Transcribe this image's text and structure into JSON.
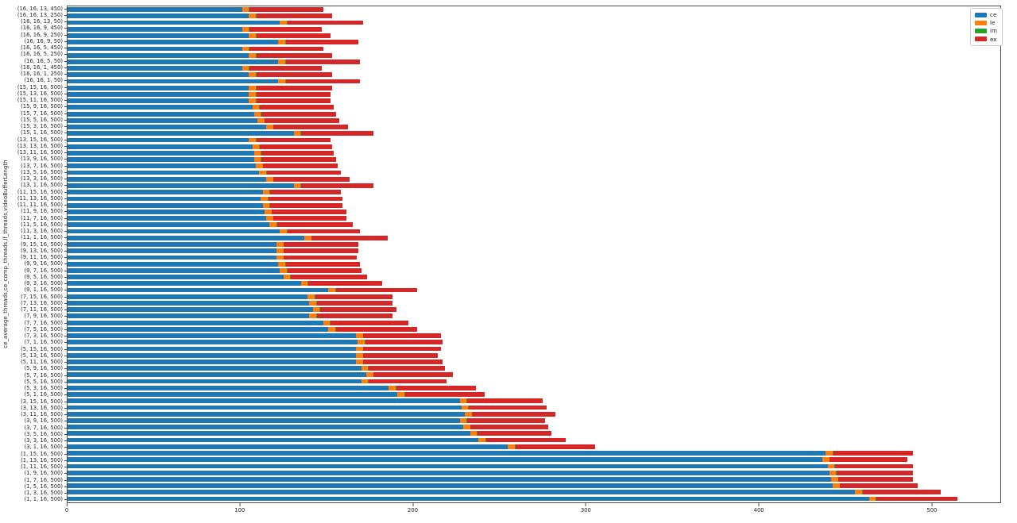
{
  "chart_data": {
    "type": "bar",
    "orientation": "horizontal",
    "stacked": true,
    "title": "",
    "xlabel": "",
    "ylabel": "ce_average_threads,ce_comp_threads,lf_threads,videoBufferLength",
    "xlim": [
      0,
      540
    ],
    "x_ticks": [
      0,
      100,
      200,
      300,
      400,
      500
    ],
    "grid": false,
    "legend_position": "upper right",
    "categories": [
      "(16, 16, 13, 450)",
      "(16, 16, 13, 250)",
      "(16, 16, 13, 50)",
      "(16, 16, 9, 450)",
      "(16, 16, 9, 250)",
      "(16, 16, 9, 50)",
      "(16, 16, 5, 450)",
      "(16, 16, 5, 250)",
      "(16, 16, 5, 50)",
      "(16, 16, 1, 450)",
      "(16, 16, 1, 250)",
      "(16, 16, 1, 50)",
      "(15, 15, 16, 500)",
      "(15, 13, 16, 500)",
      "(15, 11, 16, 500)",
      "(15, 9, 16, 500)",
      "(15, 7, 16, 500)",
      "(15, 5, 16, 500)",
      "(15, 3, 16, 500)",
      "(15, 1, 16, 500)",
      "(13, 15, 16, 500)",
      "(13, 13, 16, 500)",
      "(13, 11, 16, 500)",
      "(13, 9, 16, 500)",
      "(13, 7, 16, 500)",
      "(13, 5, 16, 500)",
      "(13, 3, 16, 500)",
      "(13, 1, 16, 500)",
      "(11, 15, 16, 500)",
      "(11, 13, 16, 500)",
      "(11, 11, 16, 500)",
      "(11, 9, 16, 500)",
      "(11, 7, 16, 500)",
      "(11, 5, 16, 500)",
      "(11, 3, 16, 500)",
      "(11, 1, 16, 500)",
      "(9, 15, 16, 500)",
      "(9, 13, 16, 500)",
      "(9, 11, 16, 500)",
      "(9, 9, 16, 500)",
      "(9, 7, 16, 500)",
      "(9, 5, 16, 500)",
      "(9, 3, 16, 500)",
      "(9, 1, 16, 500)",
      "(7, 15, 16, 500)",
      "(7, 13, 16, 500)",
      "(7, 11, 16, 500)",
      "(7, 9, 16, 500)",
      "(7, 7, 16, 500)",
      "(7, 5, 16, 500)",
      "(7, 3, 16, 500)",
      "(7, 1, 16, 500)",
      "(5, 15, 16, 500)",
      "(5, 13, 16, 500)",
      "(5, 11, 16, 500)",
      "(5, 9, 16, 500)",
      "(5, 7, 16, 500)",
      "(5, 5, 16, 500)",
      "(5, 3, 16, 500)",
      "(5, 1, 16, 500)",
      "(3, 15, 16, 500)",
      "(3, 13, 16, 500)",
      "(3, 11, 16, 500)",
      "(3, 9, 16, 500)",
      "(3, 7, 16, 500)",
      "(3, 5, 16, 500)",
      "(3, 3, 16, 500)",
      "(3, 1, 16, 500)",
      "(1, 15, 16, 500)",
      "(1, 13, 16, 500)",
      "(1, 11, 16, 500)",
      "(1, 9, 16, 500)",
      "(1, 7, 16, 500)",
      "(1, 5, 16, 500)",
      "(1, 3, 16, 500)",
      "(1, 1, 16, 500)"
    ],
    "series": [
      {
        "name": "ce",
        "color": "#1f77b4",
        "values": [
          101,
          105,
          123,
          101,
          105,
          122,
          101,
          105,
          122,
          101,
          105,
          122,
          105,
          105,
          105,
          107,
          108,
          110,
          115,
          131,
          105,
          107,
          108,
          108,
          109,
          111,
          115,
          131,
          113,
          112,
          113,
          114,
          115,
          117,
          123,
          137,
          121,
          121,
          121,
          122,
          123,
          125,
          135,
          151,
          139,
          140,
          142,
          140,
          148,
          151,
          167,
          168,
          167,
          167,
          167,
          170,
          173,
          170,
          186,
          191,
          227,
          228,
          230,
          227,
          229,
          233,
          238,
          255,
          439,
          437,
          440,
          441,
          442,
          443,
          456,
          464
        ]
      },
      {
        "name": "le",
        "color": "#ff7f0e",
        "values": [
          4,
          4,
          4,
          4,
          4,
          4,
          4,
          4,
          4,
          4,
          4,
          4,
          4,
          4,
          4,
          4,
          4,
          4,
          4,
          4,
          4,
          4,
          4,
          4,
          4,
          4,
          4,
          4,
          4,
          4,
          4,
          4,
          4,
          4,
          4,
          4,
          4,
          4,
          4,
          4,
          4,
          4,
          4,
          4,
          4,
          4,
          4,
          4,
          4,
          4,
          4,
          4,
          4,
          4,
          4,
          4,
          4,
          4,
          4,
          4,
          4,
          4,
          4,
          4,
          4,
          4,
          4,
          4,
          4,
          4,
          4,
          4,
          4,
          4,
          4,
          4
        ]
      },
      {
        "name": "im",
        "color": "#2ca02c",
        "values": [
          0.3,
          0.3,
          0.3,
          0.3,
          0.3,
          0.3,
          0.3,
          0.3,
          0.3,
          0.3,
          0.3,
          0.3,
          0.3,
          0.3,
          0.3,
          0.3,
          0.3,
          0.3,
          0.3,
          0.3,
          0.3,
          0.3,
          0.3,
          0.3,
          0.3,
          0.3,
          0.3,
          0.3,
          0.3,
          0.3,
          0.3,
          0.3,
          0.3,
          0.3,
          0.3,
          0.3,
          0.3,
          0.3,
          0.3,
          0.3,
          0.3,
          0.3,
          0.3,
          0.3,
          0.3,
          0.3,
          0.3,
          0.3,
          0.3,
          0.3,
          0.3,
          0.3,
          0.3,
          0.3,
          0.3,
          0.3,
          0.3,
          0.3,
          0.3,
          0.3,
          0.3,
          0.3,
          0.3,
          0.3,
          0.3,
          0.3,
          0.3,
          0.3,
          0.3,
          0.3,
          0.3,
          0.3,
          0.3,
          0.3,
          0.3,
          0.3
        ]
      },
      {
        "name": "ex",
        "color": "#d62728",
        "values": [
          43,
          44,
          44,
          42,
          43,
          42,
          43,
          44,
          43,
          42,
          44,
          43,
          44,
          43,
          43,
          43,
          43,
          43,
          43,
          42,
          43,
          42,
          42,
          43,
          43,
          43,
          44,
          42,
          41,
          43,
          42,
          43,
          42,
          44,
          42,
          44,
          43,
          43,
          42,
          43,
          43,
          44,
          43,
          47,
          45,
          44,
          44,
          44,
          45,
          47,
          45,
          45,
          45,
          43,
          46,
          44,
          46,
          45,
          46,
          46,
          44,
          45,
          48,
          45,
          45,
          43,
          46,
          46,
          46,
          45,
          45,
          44,
          43,
          45,
          45,
          47
        ]
      }
    ]
  }
}
